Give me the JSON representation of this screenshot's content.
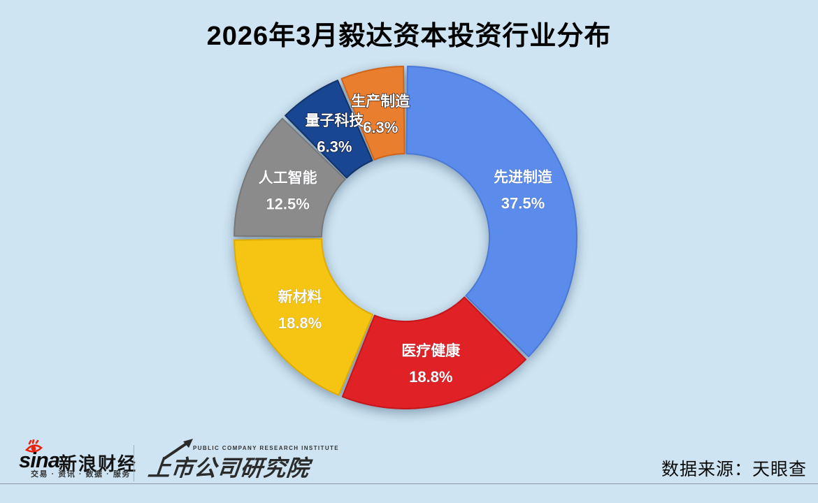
{
  "title": "2026年3月毅达资本投资行业分布",
  "chart_data": {
    "type": "pie",
    "subtype": "donut",
    "title": "2026年3月毅达资本投资行业分布",
    "start_angle_deg": 0,
    "direction": "clockwise",
    "legend_position": "none",
    "labels_on_slices": true,
    "segments": [
      {
        "label": "先进制造",
        "value": 37.5,
        "display": "37.5%",
        "color": "#5B8BEB",
        "border": "#4C79D6"
      },
      {
        "label": "医疗健康",
        "value": 18.8,
        "display": "18.8%",
        "color": "#E02126",
        "border": "#C4161B"
      },
      {
        "label": "新材料",
        "value": 18.8,
        "display": "18.8%",
        "color": "#F6C513",
        "border": "#DFAC00"
      },
      {
        "label": "人工智能",
        "value": 12.5,
        "display": "12.5%",
        "color": "#8B8B8B",
        "border": "#787878"
      },
      {
        "label": "量子科技",
        "value": 6.3,
        "display": "6.3%",
        "color": "#194693",
        "border": "#123468"
      },
      {
        "label": "生产制造",
        "value": 6.3,
        "display": "6.3%",
        "color": "#E97E2E",
        "border": "#CE651A"
      }
    ]
  },
  "footer": {
    "sina_wordmark": "sina",
    "sina_brand": "新浪财经",
    "sina_tagline": "交易 · 资讯 · 数据 · 服务",
    "institute_en": "PUBLIC COMPANY RESEARCH INSTITUTE",
    "institute_cn": "上市公司研究院",
    "source": "数据来源：天眼查"
  },
  "colors": {
    "background": "#CEE4F2",
    "title_text": "#000000",
    "slice_label_text": "#FFFFFF",
    "sina_red": "#E8220E",
    "footer_text": "#2B2B2B",
    "divider": "#8C99A3"
  }
}
